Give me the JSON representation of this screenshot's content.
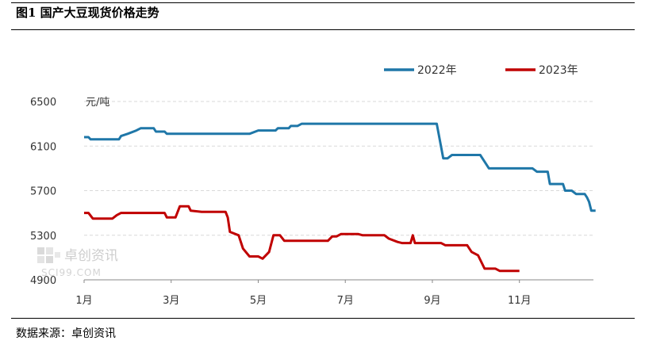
{
  "figure_title": "图1 国产大豆现货价格走势",
  "source_note": "数据来源：卓创资讯",
  "watermark": {
    "name": "卓创资讯",
    "url": "SCI99.COM"
  },
  "colors": {
    "series_2022": "#1f77a8",
    "series_2023": "#c00000",
    "grid": "#d9d9d9"
  },
  "chart_data": {
    "type": "line",
    "title": "",
    "ylabel": "元/吨",
    "xlabel": "",
    "ylim": [
      4900,
      6500
    ],
    "yticks": [
      4900,
      5300,
      5700,
      6100,
      6500
    ],
    "xlim": [
      1,
      12.7
    ],
    "xticks": [
      {
        "value": 1,
        "label": "1月"
      },
      {
        "value": 3,
        "label": "3月"
      },
      {
        "value": 5,
        "label": "5月"
      },
      {
        "value": 7,
        "label": "7月"
      },
      {
        "value": 9,
        "label": "9月"
      },
      {
        "value": 11,
        "label": "11月"
      }
    ],
    "grid": true,
    "legend_position": "top-right",
    "series": [
      {
        "name": "2022年",
        "color": "#1f77a8",
        "points": [
          [
            1.0,
            6180
          ],
          [
            1.1,
            6180
          ],
          [
            1.15,
            6160
          ],
          [
            1.8,
            6160
          ],
          [
            1.85,
            6190
          ],
          [
            2.0,
            6210
          ],
          [
            2.2,
            6240
          ],
          [
            2.3,
            6260
          ],
          [
            2.6,
            6260
          ],
          [
            2.65,
            6230
          ],
          [
            2.85,
            6230
          ],
          [
            2.9,
            6210
          ],
          [
            3.8,
            6210
          ],
          [
            4.8,
            6210
          ],
          [
            5.0,
            6240
          ],
          [
            5.4,
            6240
          ],
          [
            5.45,
            6260
          ],
          [
            5.7,
            6260
          ],
          [
            5.75,
            6280
          ],
          [
            5.9,
            6280
          ],
          [
            6.0,
            6300
          ],
          [
            9.1,
            6300
          ],
          [
            9.25,
            5990
          ],
          [
            9.35,
            5990
          ],
          [
            9.45,
            6020
          ],
          [
            10.1,
            6020
          ],
          [
            10.2,
            5960
          ],
          [
            10.3,
            5900
          ],
          [
            11.3,
            5900
          ],
          [
            11.4,
            5870
          ],
          [
            11.65,
            5870
          ],
          [
            11.7,
            5760
          ],
          [
            12.0,
            5760
          ],
          [
            12.05,
            5700
          ],
          [
            12.2,
            5700
          ],
          [
            12.3,
            5670
          ],
          [
            12.5,
            5670
          ],
          [
            12.55,
            5640
          ],
          [
            12.6,
            5600
          ],
          [
            12.65,
            5520
          ],
          [
            12.75,
            5520
          ]
        ]
      },
      {
        "name": "2023年",
        "color": "#c00000",
        "points": [
          [
            1.0,
            5500
          ],
          [
            1.1,
            5500
          ],
          [
            1.2,
            5450
          ],
          [
            1.65,
            5450
          ],
          [
            1.75,
            5480
          ],
          [
            1.85,
            5500
          ],
          [
            2.85,
            5500
          ],
          [
            2.9,
            5460
          ],
          [
            3.1,
            5460
          ],
          [
            3.2,
            5560
          ],
          [
            3.4,
            5560
          ],
          [
            3.45,
            5520
          ],
          [
            3.7,
            5510
          ],
          [
            4.25,
            5510
          ],
          [
            4.3,
            5460
          ],
          [
            4.35,
            5330
          ],
          [
            4.55,
            5300
          ],
          [
            4.65,
            5180
          ],
          [
            4.8,
            5110
          ],
          [
            5.0,
            5110
          ],
          [
            5.1,
            5090
          ],
          [
            5.25,
            5150
          ],
          [
            5.35,
            5300
          ],
          [
            5.5,
            5300
          ],
          [
            5.6,
            5250
          ],
          [
            6.6,
            5250
          ],
          [
            6.7,
            5290
          ],
          [
            6.8,
            5290
          ],
          [
            6.9,
            5310
          ],
          [
            7.3,
            5310
          ],
          [
            7.4,
            5300
          ],
          [
            7.9,
            5300
          ],
          [
            8.0,
            5270
          ],
          [
            8.2,
            5240
          ],
          [
            8.3,
            5230
          ],
          [
            8.5,
            5230
          ],
          [
            8.55,
            5300
          ],
          [
            8.6,
            5230
          ],
          [
            9.2,
            5230
          ],
          [
            9.3,
            5210
          ],
          [
            9.8,
            5210
          ],
          [
            9.9,
            5150
          ],
          [
            10.05,
            5120
          ],
          [
            10.2,
            5000
          ],
          [
            10.45,
            5000
          ],
          [
            10.55,
            4980
          ],
          [
            11.0,
            4980
          ]
        ]
      }
    ]
  }
}
